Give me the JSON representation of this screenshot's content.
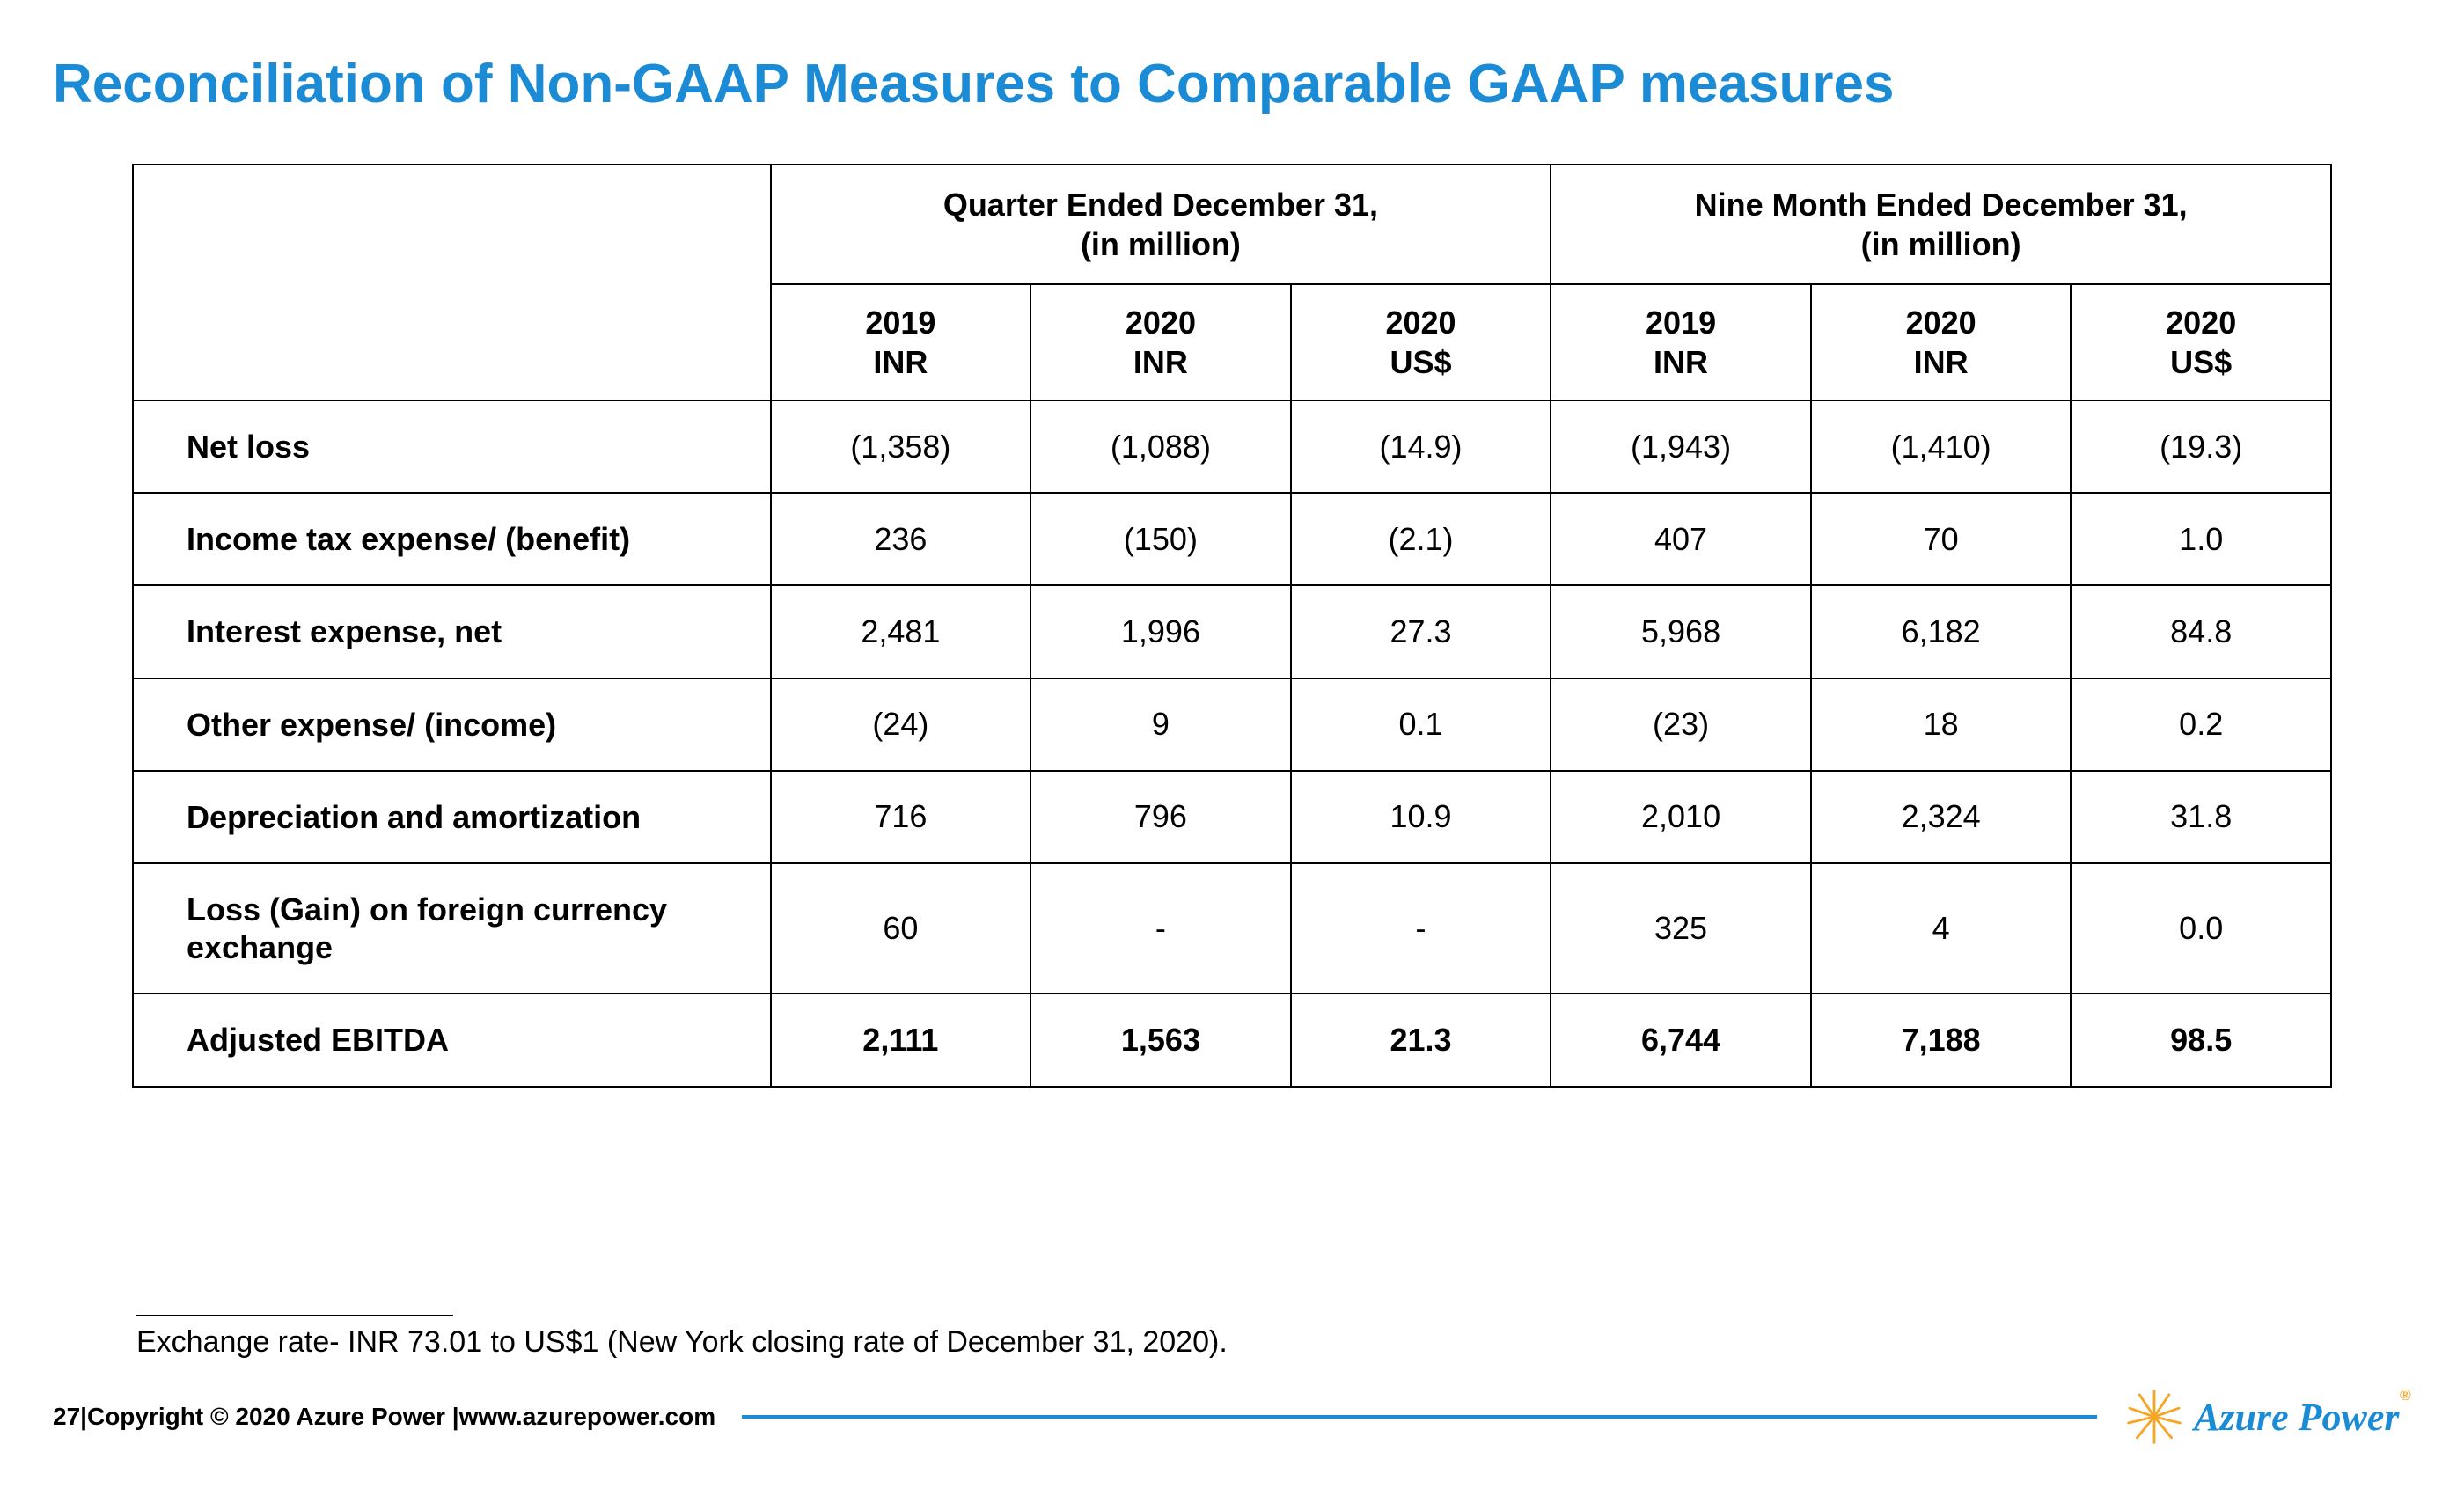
{
  "title": "Reconciliation of Non-GAAP Measures to Comparable GAAP measures",
  "table": {
    "group_headers": [
      {
        "line1": "Quarter Ended December 31,",
        "line2": "(in million)"
      },
      {
        "line1": "Nine Month Ended December 31,",
        "line2": "(in million)"
      }
    ],
    "sub_headers": [
      {
        "line1": "2019",
        "line2": "INR"
      },
      {
        "line1": "2020",
        "line2": "INR"
      },
      {
        "line1": "2020",
        "line2": "US$"
      },
      {
        "line1": "2019",
        "line2": "INR"
      },
      {
        "line1": "2020",
        "line2": "INR"
      },
      {
        "line1": "2020",
        "line2": "US$"
      }
    ],
    "rows": [
      {
        "label": "Net loss",
        "bold": false,
        "cells": [
          "(1,358)",
          "(1,088)",
          "(14.9)",
          "(1,943)",
          "(1,410)",
          "(19.3)"
        ]
      },
      {
        "label": "Income tax expense/ (benefit)",
        "bold": false,
        "cells": [
          "236",
          "(150)",
          "(2.1)",
          "407",
          "70",
          "1.0"
        ]
      },
      {
        "label": "Interest expense, net",
        "bold": false,
        "cells": [
          "2,481",
          "1,996",
          "27.3",
          "5,968",
          "6,182",
          "84.8"
        ]
      },
      {
        "label": "Other expense/ (income)",
        "bold": false,
        "cells": [
          "(24)",
          "9",
          "0.1",
          "(23)",
          "18",
          "0.2"
        ]
      },
      {
        "label": "Depreciation and amortization",
        "bold": false,
        "cells": [
          "716",
          "796",
          "10.9",
          "2,010",
          "2,324",
          "31.8"
        ]
      },
      {
        "label": "Loss (Gain) on foreign currency exchange",
        "bold": false,
        "cells": [
          "60",
          "-",
          "-",
          "325",
          "4",
          "0.0"
        ]
      },
      {
        "label": "Adjusted EBITDA",
        "bold": true,
        "cells": [
          "2,111",
          "1,563",
          "21.3",
          "6,744",
          "7,188",
          "98.5"
        ]
      }
    ]
  },
  "footnote": "Exchange rate- INR 73.01 to US$1 (New York closing rate of December 31, 2020).",
  "footer": {
    "copyright": "27|Copyright © 2020 Azure Power |www.azurepower.com",
    "logo_text": "Azure Power",
    "logo_reg": "®"
  },
  "colors": {
    "title": "#1b8bd6",
    "footer_line": "#1b8bd6",
    "sun": "#f5a623",
    "sun_rays": "#f5a623"
  }
}
